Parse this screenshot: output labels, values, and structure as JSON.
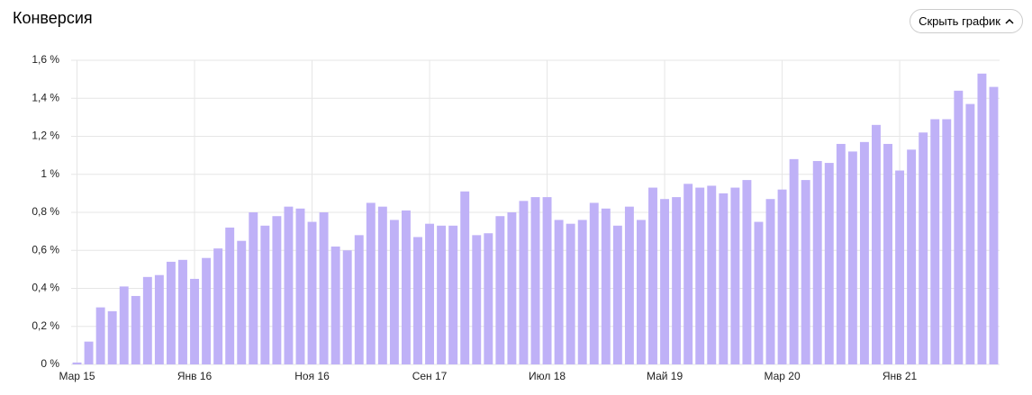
{
  "chart_data": {
    "type": "bar",
    "title": "Конверсия",
    "categories": [
      "Мар 15",
      null,
      null,
      null,
      null,
      null,
      null,
      null,
      null,
      null,
      "Янв 16",
      null,
      null,
      null,
      null,
      null,
      null,
      null,
      null,
      null,
      "Ноя 16",
      null,
      null,
      null,
      null,
      null,
      null,
      null,
      null,
      null,
      "Сен 17",
      null,
      null,
      null,
      null,
      null,
      null,
      null,
      null,
      null,
      "Июл 18",
      null,
      null,
      null,
      null,
      null,
      null,
      null,
      null,
      null,
      "Май 19",
      null,
      null,
      null,
      null,
      null,
      null,
      null,
      null,
      null,
      "Мар 20",
      null,
      null,
      null,
      null,
      null,
      null,
      null,
      null,
      null,
      "Янв 21",
      null,
      null,
      null,
      null,
      null,
      null,
      null,
      null
    ],
    "values": [
      0.01,
      0.12,
      0.3,
      0.28,
      0.41,
      0.36,
      0.46,
      0.47,
      0.54,
      0.55,
      0.45,
      0.56,
      0.61,
      0.72,
      0.65,
      0.8,
      0.73,
      0.78,
      0.83,
      0.82,
      0.75,
      0.8,
      0.62,
      0.6,
      0.68,
      0.85,
      0.83,
      0.76,
      0.81,
      0.67,
      0.74,
      0.73,
      0.73,
      0.91,
      0.68,
      0.69,
      0.78,
      0.8,
      0.86,
      0.88,
      0.88,
      0.76,
      0.74,
      0.76,
      0.85,
      0.82,
      0.73,
      0.83,
      0.76,
      0.93,
      0.87,
      0.88,
      0.95,
      0.93,
      0.94,
      0.9,
      0.93,
      0.97,
      0.75,
      0.87,
      0.92,
      1.08,
      0.97,
      1.07,
      1.06,
      1.16,
      1.12,
      1.17,
      1.26,
      1.16,
      1.02,
      1.13,
      1.22,
      1.29,
      1.29,
      1.44,
      1.37,
      1.53,
      1.46
    ],
    "color": "#bfb1f7",
    "ylim": [
      0,
      1.6
    ],
    "yticks": [
      {
        "value": 0,
        "label": "0 %"
      },
      {
        "value": 0.2,
        "label": "0,2 %"
      },
      {
        "value": 0.4,
        "label": "0,4 %"
      },
      {
        "value": 0.6,
        "label": "0,6 %"
      },
      {
        "value": 0.8,
        "label": "0,8 %"
      },
      {
        "value": 1,
        "label": "1 %"
      },
      {
        "value": 1.2,
        "label": "1,2 %"
      },
      {
        "value": 1.4,
        "label": "1,4 %"
      },
      {
        "value": 1.6,
        "label": "1,6 %"
      }
    ],
    "grid": true
  },
  "button": "Скрыть график"
}
